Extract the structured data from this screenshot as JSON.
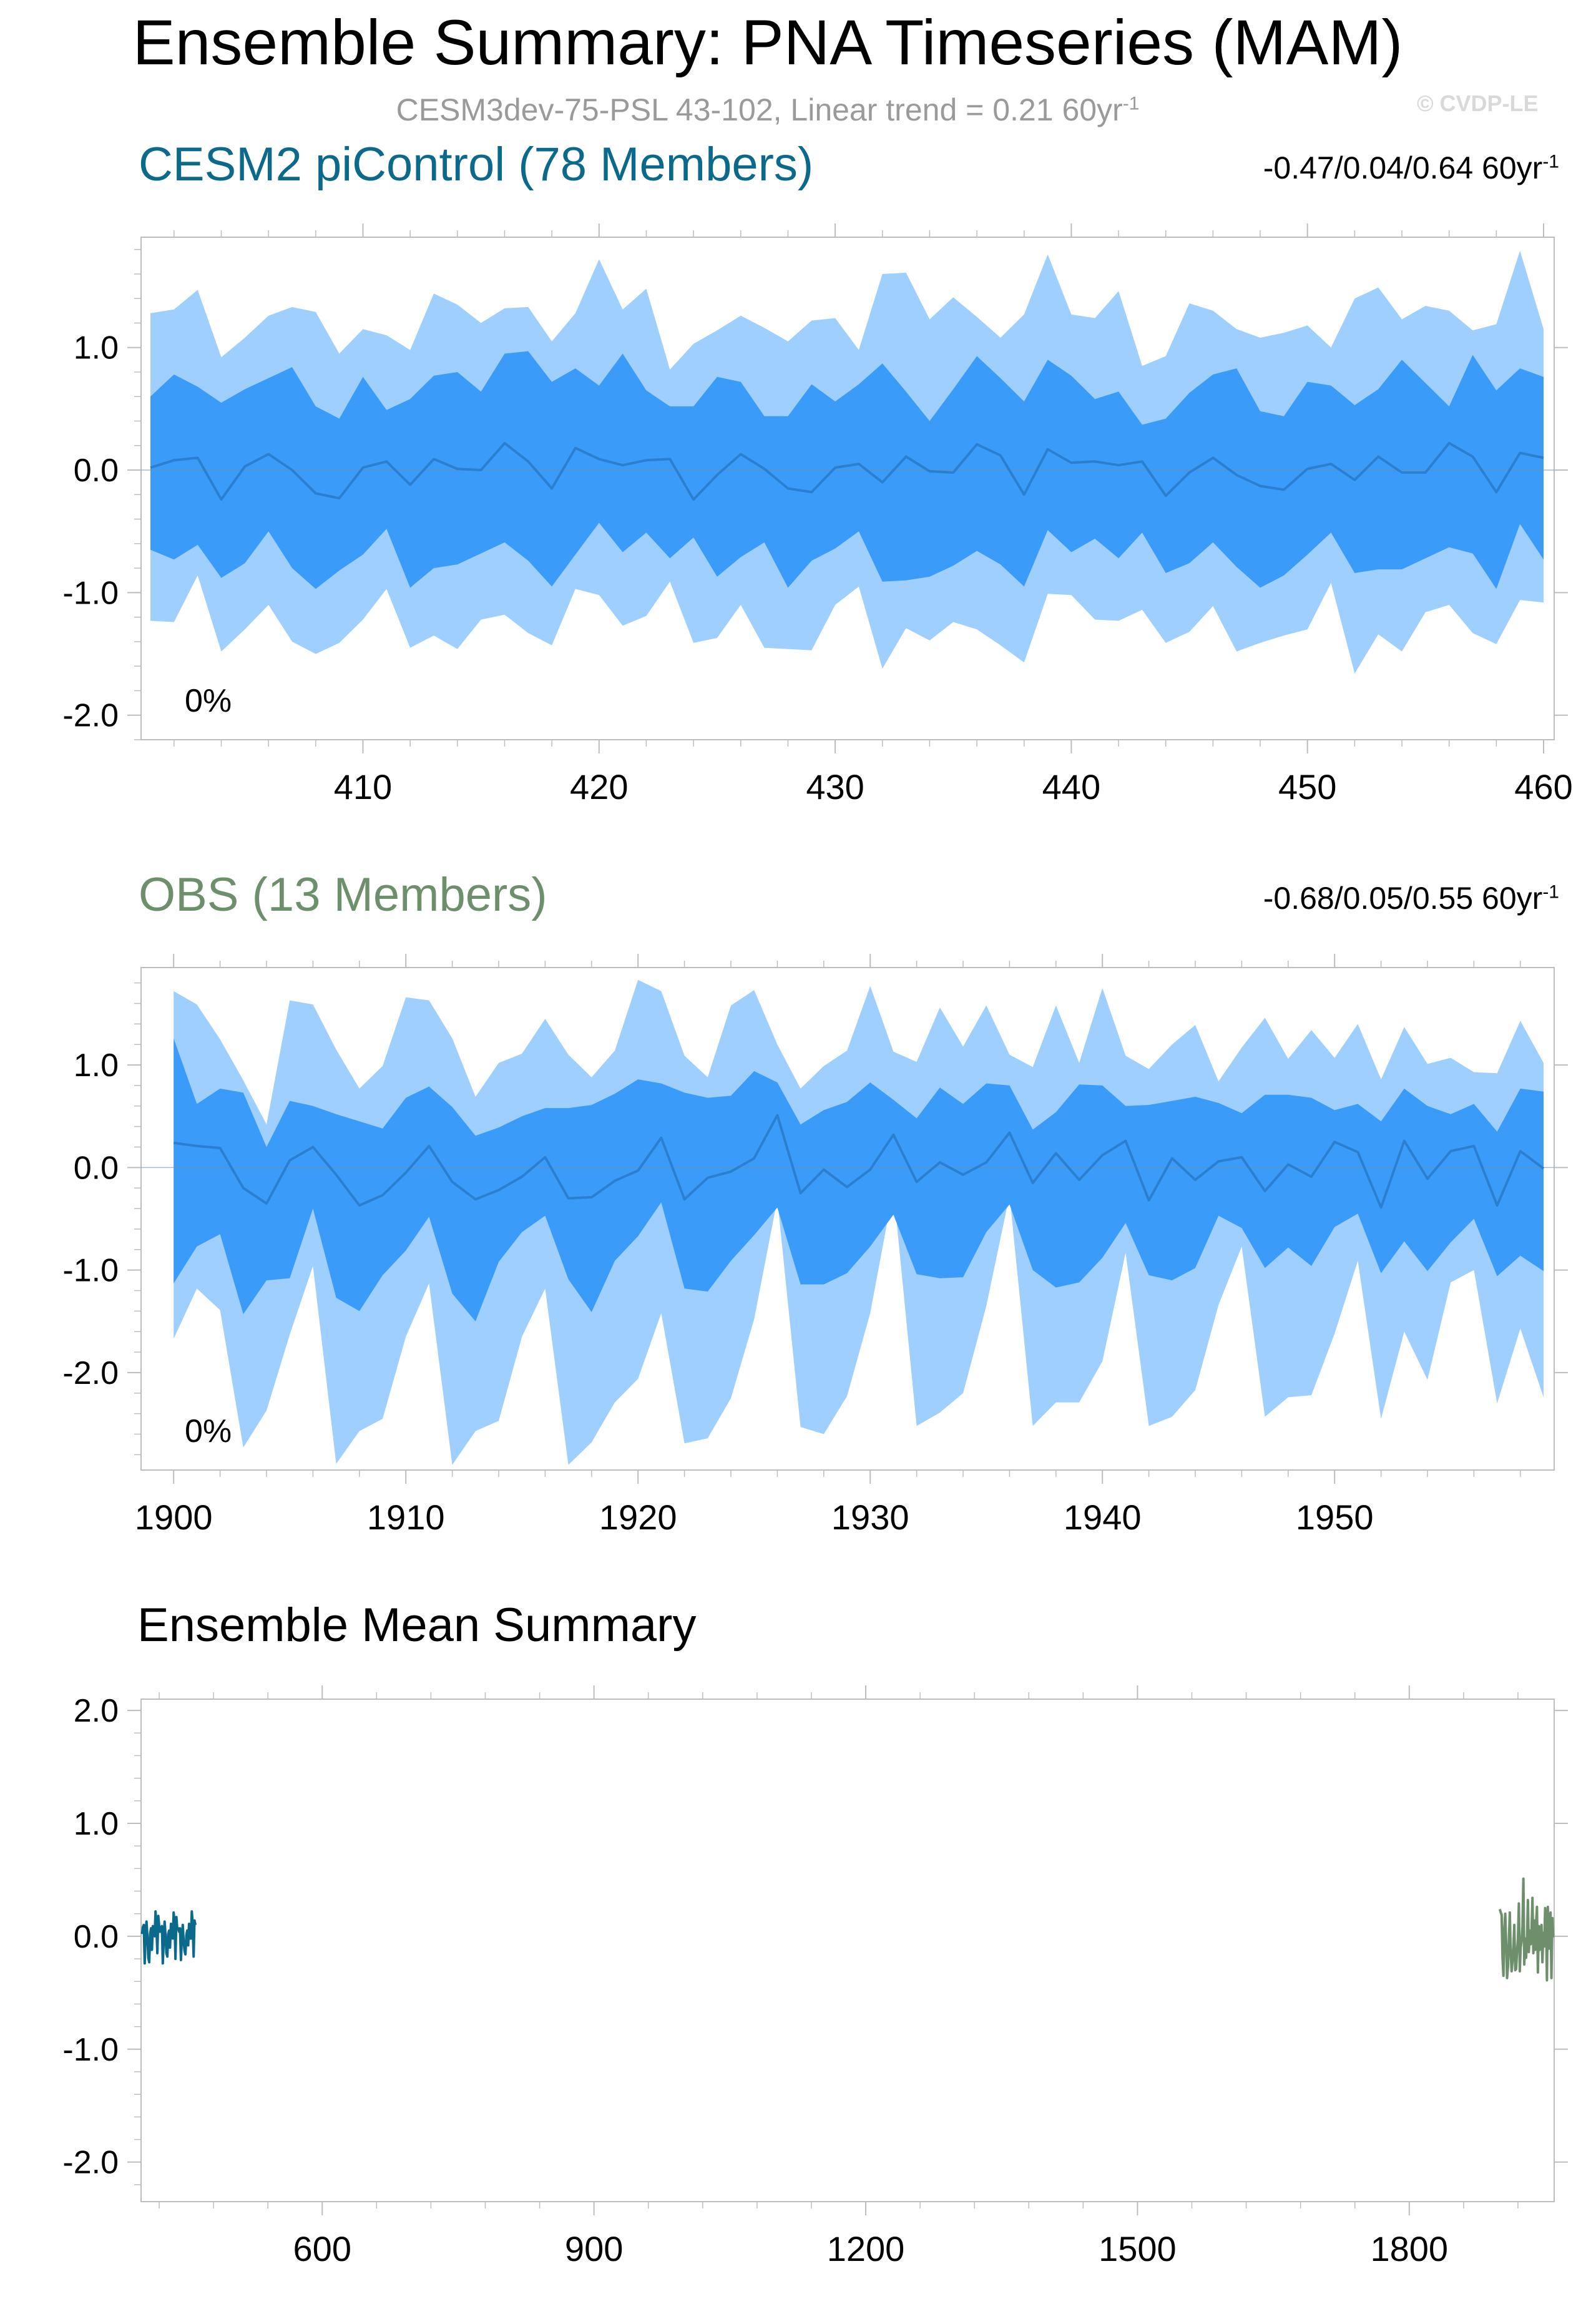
{
  "header": {
    "title": "Ensemble Summary: PNA Timeseries (MAM)",
    "subtitle": "CESM3dev-75-PSL 43-102, Linear trend = 0.21 60yr",
    "subtitle_sup": "-1",
    "copyright": "© CVDP-LE"
  },
  "colors": {
    "outer_band": "#9fcfff",
    "inner_band": "#3a9cf8",
    "mean_line": "#2b7fd1",
    "cesm_title": "#0b6a8c",
    "obs_title": "#6d8f6b",
    "axis": "#bdbdbd"
  },
  "chart_data": [
    {
      "type": "area",
      "title": "CESM2 piControl (78 Members)",
      "stats": "-0.47/0.04/0.64 60yr",
      "stats_sup": "-1",
      "percent_label": "0%",
      "xlim": [
        401,
        460
      ],
      "ylim": [
        -2.2,
        1.9
      ],
      "xticks": [
        410,
        420,
        430,
        440,
        450,
        460
      ],
      "xticklabels": [
        "410",
        "420",
        "430",
        "440",
        "450",
        "460"
      ],
      "yticks": [
        1.0,
        0.0,
        -1.0,
        -2.0
      ],
      "yticklabels": [
        "1.0",
        "0.0",
        "-1.0",
        "-2.0"
      ],
      "x": [
        401,
        402,
        403,
        404,
        405,
        406,
        407,
        408,
        409,
        410,
        411,
        412,
        413,
        414,
        415,
        416,
        417,
        418,
        419,
        420,
        421,
        422,
        423,
        424,
        425,
        426,
        427,
        428,
        429,
        430,
        431,
        432,
        433,
        434,
        435,
        436,
        437,
        438,
        439,
        440,
        441,
        442,
        443,
        444,
        445,
        446,
        447,
        448,
        449,
        450,
        451,
        452,
        453,
        454,
        455,
        456,
        457,
        458,
        459,
        460
      ],
      "outer_upper": [
        1.28,
        1.31,
        1.47,
        0.92,
        1.08,
        1.26,
        1.33,
        1.29,
        0.95,
        1.15,
        1.1,
        0.98,
        1.44,
        1.35,
        1.2,
        1.32,
        1.33,
        1.05,
        1.28,
        1.72,
        1.31,
        1.48,
        0.82,
        1.03,
        1.14,
        1.26,
        1.16,
        1.05,
        1.22,
        1.24,
        0.98,
        1.6,
        1.61,
        1.23,
        1.41,
        1.25,
        1.08,
        1.27,
        1.76,
        1.27,
        1.24,
        1.46,
        0.85,
        0.93,
        1.36,
        1.3,
        1.15,
        1.08,
        1.12,
        1.18,
        1.0,
        1.4,
        1.49,
        1.23,
        1.34,
        1.3,
        1.14,
        1.19,
        1.79,
        1.15
      ],
      "inner_upper": [
        0.6,
        0.78,
        0.68,
        0.55,
        0.66,
        0.75,
        0.84,
        0.52,
        0.42,
        0.76,
        0.49,
        0.58,
        0.77,
        0.8,
        0.64,
        0.95,
        0.97,
        0.72,
        0.83,
        0.69,
        0.95,
        0.65,
        0.52,
        0.52,
        0.76,
        0.72,
        0.44,
        0.44,
        0.7,
        0.56,
        0.7,
        0.87,
        0.64,
        0.4,
        0.66,
        0.93,
        0.75,
        0.56,
        0.9,
        0.77,
        0.58,
        0.64,
        0.37,
        0.42,
        0.63,
        0.78,
        0.83,
        0.48,
        0.44,
        0.72,
        0.69,
        0.53,
        0.66,
        0.9,
        0.71,
        0.52,
        0.94,
        0.65,
        0.83,
        0.76
      ],
      "mean": [
        0.02,
        0.08,
        0.1,
        -0.24,
        0.03,
        0.13,
        0.0,
        -0.19,
        -0.23,
        0.02,
        0.07,
        -0.12,
        0.09,
        0.01,
        0.0,
        0.22,
        0.07,
        -0.15,
        0.18,
        0.09,
        0.04,
        0.08,
        0.09,
        -0.24,
        -0.04,
        0.13,
        0.01,
        -0.15,
        -0.18,
        0.02,
        0.05,
        -0.1,
        0.11,
        -0.01,
        -0.02,
        0.21,
        0.12,
        -0.2,
        0.17,
        0.06,
        0.07,
        0.04,
        0.07,
        -0.21,
        -0.02,
        0.1,
        -0.04,
        -0.13,
        -0.16,
        0.01,
        0.05,
        -0.08,
        0.11,
        -0.02,
        -0.02,
        0.22,
        0.11,
        -0.18,
        0.14,
        0.1
      ],
      "inner_lower": [
        -0.65,
        -0.73,
        -0.61,
        -0.88,
        -0.76,
        -0.5,
        -0.8,
        -0.97,
        -0.82,
        -0.69,
        -0.48,
        -0.96,
        -0.8,
        -0.77,
        -0.68,
        -0.59,
        -0.74,
        -0.95,
        -0.69,
        -0.43,
        -0.67,
        -0.51,
        -0.72,
        -0.55,
        -0.87,
        -0.71,
        -0.59,
        -0.96,
        -0.74,
        -0.64,
        -0.5,
        -0.91,
        -0.9,
        -0.87,
        -0.78,
        -0.66,
        -0.77,
        -0.95,
        -0.49,
        -0.67,
        -0.56,
        -0.72,
        -0.51,
        -0.84,
        -0.76,
        -0.59,
        -0.79,
        -0.96,
        -0.86,
        -0.69,
        -0.51,
        -0.84,
        -0.81,
        -0.81,
        -0.72,
        -0.63,
        -0.68,
        -0.97,
        -0.44,
        -0.73
      ],
      "outer_lower": [
        -1.23,
        -1.24,
        -0.86,
        -1.48,
        -1.3,
        -1.1,
        -1.4,
        -1.5,
        -1.41,
        -1.22,
        -0.97,
        -1.45,
        -1.35,
        -1.46,
        -1.22,
        -1.18,
        -1.33,
        -1.43,
        -0.97,
        -1.02,
        -1.27,
        -1.19,
        -0.91,
        -1.41,
        -1.37,
        -1.1,
        -1.45,
        -1.46,
        -1.47,
        -1.1,
        -0.95,
        -1.62,
        -1.29,
        -1.39,
        -1.24,
        -1.3,
        -1.43,
        -1.57,
        -1.01,
        -1.02,
        -1.22,
        -1.23,
        -1.14,
        -1.41,
        -1.32,
        -1.11,
        -1.48,
        -1.41,
        -1.35,
        -1.3,
        -0.92,
        -1.66,
        -1.34,
        -1.48,
        -1.16,
        -1.1,
        -1.33,
        -1.42,
        -1.06,
        -1.08
      ]
    },
    {
      "type": "area",
      "title": "OBS (13 Members)",
      "stats": "-0.68/0.05/0.55 60yr",
      "stats_sup": "-1",
      "percent_label": "0%",
      "xlim": [
        1899,
        1959
      ],
      "ylim": [
        -2.95,
        1.95
      ],
      "xticks": [
        1900,
        1910,
        1920,
        1930,
        1940,
        1950
      ],
      "xticklabels": [
        "1900",
        "1910",
        "1920",
        "1930",
        "1940",
        "1950"
      ],
      "yticks": [
        1.0,
        0.0,
        -1.0,
        -2.0
      ],
      "yticklabels": [
        "1.0",
        "0.0",
        "-1.0",
        "-2.0"
      ],
      "x": [
        1900,
        1901,
        1902,
        1903,
        1904,
        1905,
        1906,
        1907,
        1908,
        1909,
        1910,
        1911,
        1912,
        1913,
        1914,
        1915,
        1916,
        1917,
        1918,
        1919,
        1920,
        1921,
        1922,
        1923,
        1924,
        1925,
        1926,
        1927,
        1928,
        1929,
        1930,
        1931,
        1932,
        1933,
        1934,
        1935,
        1936,
        1937,
        1938,
        1939,
        1940,
        1941,
        1942,
        1943,
        1944,
        1945,
        1946,
        1947,
        1948,
        1949,
        1950,
        1951,
        1952,
        1953,
        1954,
        1955,
        1956,
        1957,
        1958,
        1959
      ],
      "outer_upper": [
        1.72,
        1.59,
        1.25,
        0.85,
        0.42,
        1.63,
        1.59,
        1.15,
        0.77,
        0.99,
        1.66,
        1.63,
        1.26,
        0.69,
        1.02,
        1.11,
        1.45,
        1.1,
        0.88,
        1.14,
        1.83,
        1.72,
        1.09,
        0.88,
        1.58,
        1.73,
        1.2,
        0.77,
        0.99,
        1.14,
        1.77,
        1.13,
        1.03,
        1.56,
        1.18,
        1.58,
        1.1,
        0.98,
        1.58,
        1.02,
        1.75,
        1.09,
        0.96,
        1.2,
        1.39,
        0.84,
        1.17,
        1.46,
        1.06,
        1.34,
        1.07,
        1.4,
        0.86,
        1.37,
        1.01,
        1.07,
        0.93,
        0.92,
        1.43,
        1.02
      ],
      "inner_upper": [
        1.26,
        0.62,
        0.77,
        0.73,
        0.2,
        0.65,
        0.6,
        0.52,
        0.45,
        0.38,
        0.68,
        0.79,
        0.59,
        0.31,
        0.39,
        0.5,
        0.58,
        0.58,
        0.61,
        0.72,
        0.86,
        0.82,
        0.73,
        0.68,
        0.7,
        0.94,
        0.83,
        0.42,
        0.56,
        0.64,
        0.83,
        0.66,
        0.48,
        0.78,
        0.62,
        0.82,
        0.8,
        0.37,
        0.54,
        0.81,
        0.8,
        0.6,
        0.61,
        0.65,
        0.69,
        0.63,
        0.53,
        0.71,
        0.71,
        0.68,
        0.56,
        0.62,
        0.45,
        0.77,
        0.6,
        0.52,
        0.62,
        0.35,
        0.77,
        0.74
      ],
      "mean": [
        0.24,
        0.21,
        0.19,
        -0.2,
        -0.35,
        0.07,
        0.2,
        -0.07,
        -0.37,
        -0.27,
        -0.05,
        0.21,
        -0.14,
        -0.31,
        -0.22,
        -0.09,
        0.1,
        -0.3,
        -0.29,
        -0.13,
        -0.03,
        0.29,
        -0.31,
        -0.1,
        -0.04,
        0.09,
        0.51,
        -0.25,
        -0.02,
        -0.19,
        -0.02,
        0.32,
        -0.14,
        0.05,
        -0.07,
        0.05,
        0.34,
        -0.15,
        0.14,
        -0.12,
        0.12,
        0.26,
        -0.32,
        0.09,
        -0.12,
        0.06,
        0.1,
        -0.23,
        0.03,
        -0.09,
        0.25,
        0.15,
        -0.39,
        0.26,
        -0.11,
        0.16,
        0.21,
        -0.37,
        0.16,
        -0.01
      ],
      "inner_lower": [
        -1.13,
        -0.77,
        -0.65,
        -1.43,
        -1.1,
        -1.08,
        -0.4,
        -1.27,
        -1.4,
        -1.05,
        -0.81,
        -0.48,
        -1.23,
        -1.5,
        -0.92,
        -0.63,
        -0.47,
        -1.09,
        -1.41,
        -0.91,
        -0.67,
        -0.34,
        -1.18,
        -1.21,
        -0.91,
        -0.66,
        -0.39,
        -1.14,
        -1.14,
        -1.03,
        -0.77,
        -0.46,
        -1.04,
        -1.08,
        -1.07,
        -0.63,
        -0.36,
        -1.0,
        -1.17,
        -1.12,
        -0.88,
        -0.54,
        -1.05,
        -1.1,
        -0.98,
        -0.47,
        -0.59,
        -0.98,
        -0.78,
        -0.96,
        -0.58,
        -0.45,
        -1.03,
        -0.72,
        -1.01,
        -0.73,
        -0.5,
        -1.06,
        -0.86,
        -1.01
      ],
      "outer_lower": [
        -1.67,
        -1.18,
        -1.39,
        -2.73,
        -2.37,
        -1.63,
        -0.96,
        -2.89,
        -2.57,
        -2.45,
        -1.65,
        -1.13,
        -2.9,
        -2.57,
        -2.47,
        -1.65,
        -1.18,
        -2.9,
        -2.68,
        -2.29,
        -2.06,
        -1.42,
        -2.69,
        -2.64,
        -2.25,
        -1.48,
        -0.31,
        -2.53,
        -2.6,
        -2.23,
        -1.42,
        -0.21,
        -2.52,
        -2.39,
        -2.2,
        -1.35,
        -0.27,
        -2.52,
        -2.29,
        -2.29,
        -1.89,
        -0.83,
        -2.52,
        -2.43,
        -2.17,
        -1.34,
        -0.77,
        -2.43,
        -2.24,
        -2.22,
        -1.62,
        -0.91,
        -2.45,
        -1.6,
        -2.07,
        -1.12,
        -1.0,
        -2.3,
        -1.57,
        -2.24
      ]
    },
    {
      "type": "line",
      "title": "Ensemble Mean Summary",
      "xlim": [
        400,
        1960
      ],
      "ylim": [
        -2.35,
        2.1
      ],
      "xticks": [
        600,
        900,
        1200,
        1500,
        1800
      ],
      "xticklabels": [
        "600",
        "900",
        "1200",
        "1500",
        "1800"
      ],
      "yticks": [
        2.0,
        1.0,
        0.0,
        -1.0,
        -2.0
      ],
      "yticklabels": [
        "2.0",
        "1.0",
        "0.0",
        "-1.0",
        "-2.0"
      ],
      "series": [
        {
          "ref": 0,
          "color": "#0b6a8c"
        },
        {
          "ref": 1,
          "color": "#6d8f6b"
        }
      ]
    }
  ]
}
